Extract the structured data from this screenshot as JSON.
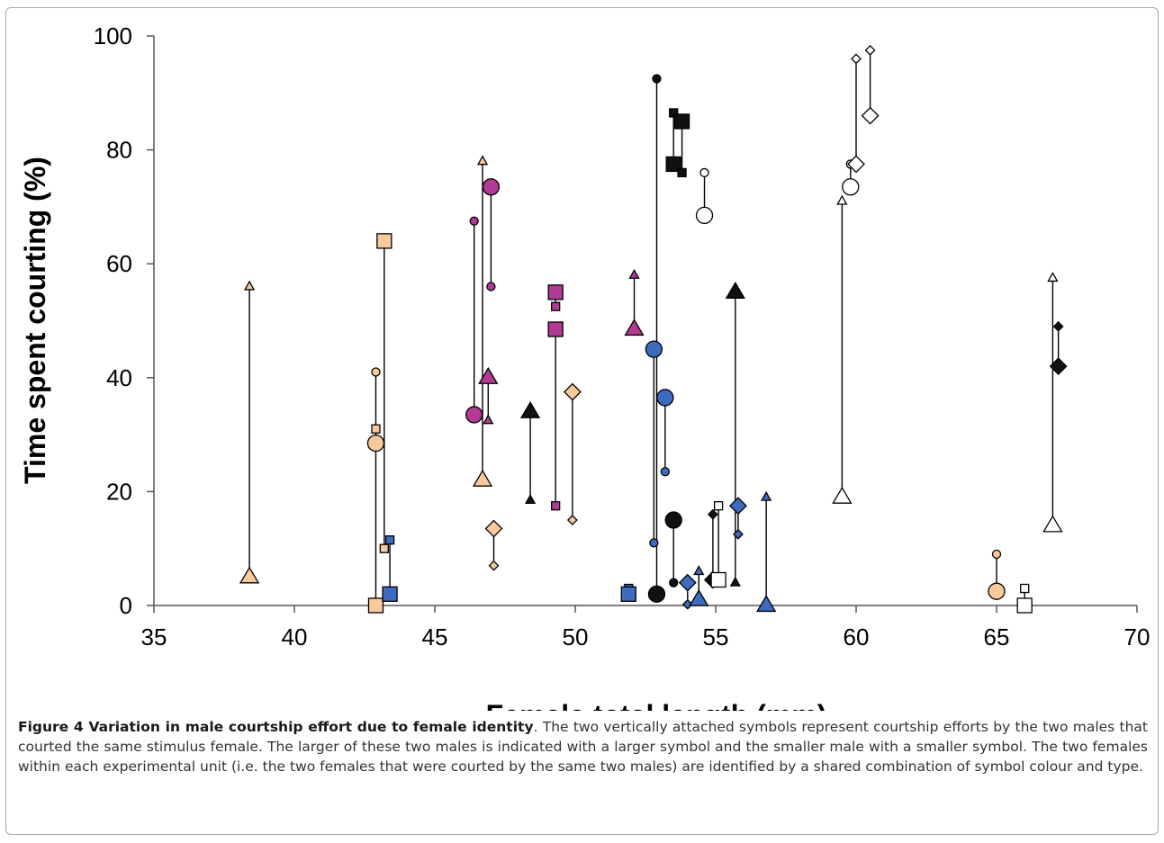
{
  "chart_data": {
    "type": "scatter",
    "xlabel": "Female total length (mm)",
    "ylabel": "Time spent courting (%)",
    "xlim": [
      35,
      70
    ],
    "ylim": [
      0,
      100
    ],
    "x_ticks": [
      "35",
      "40",
      "45",
      "50",
      "55",
      "60",
      "65",
      "70"
    ],
    "y_ticks": [
      "0",
      "20",
      "40",
      "60",
      "80",
      "100"
    ],
    "grid": false,
    "legend": "none",
    "colors": {
      "peach": "#f9c89b",
      "magenta": "#b03a94",
      "blue": "#3d6bbf",
      "black": "#111111",
      "white": "#ffffff"
    },
    "pairs": [
      {
        "x": 38.4,
        "shape": "triangle",
        "color": "peach",
        "large": 5,
        "small": 56
      },
      {
        "x": 42.9,
        "shape": "circle",
        "color": "peach",
        "large": 28.5,
        "small": 41
      },
      {
        "x": 42.9,
        "shape": "square",
        "color": "peach",
        "large": 0,
        "small": 31
      },
      {
        "x": 43.2,
        "shape": "square",
        "color": "peach",
        "large": 64,
        "small": 10
      },
      {
        "x": 43.4,
        "shape": "square",
        "color": "blue",
        "large": 2,
        "small": 11.5
      },
      {
        "x": 46.4,
        "shape": "circle",
        "color": "magenta",
        "large": 33.5,
        "small": 67.5
      },
      {
        "x": 46.7,
        "shape": "triangle",
        "color": "peach",
        "large": 22,
        "small": 78
      },
      {
        "x": 47.0,
        "shape": "circle",
        "color": "magenta",
        "large": 73.5,
        "small": 56
      },
      {
        "x": 46.9,
        "shape": "triangle",
        "color": "magenta",
        "large": 40,
        "small": 32.5
      },
      {
        "x": 47.1,
        "shape": "diamond",
        "color": "peach",
        "large": 13.5,
        "small": 7
      },
      {
        "x": 48.4,
        "shape": "triangle",
        "color": "black",
        "large": 34,
        "small": 18.5
      },
      {
        "x": 49.3,
        "shape": "square",
        "color": "magenta",
        "large": 55,
        "small": 52.5
      },
      {
        "x": 49.3,
        "shape": "square",
        "color": "magenta",
        "large": 48.5,
        "small": 17.5
      },
      {
        "x": 49.9,
        "shape": "diamond",
        "color": "peach",
        "large": 37.5,
        "small": 15
      },
      {
        "x": 52.1,
        "shape": "triangle",
        "color": "magenta",
        "large": 48.5,
        "small": 58
      },
      {
        "x": 51.9,
        "shape": "square",
        "color": "blue",
        "large": 2,
        "small": 3
      },
      {
        "x": 52.8,
        "shape": "circle",
        "color": "blue",
        "large": 45,
        "small": 11
      },
      {
        "x": 52.9,
        "shape": "circle",
        "color": "black",
        "large": 2,
        "small": 92.5
      },
      {
        "x": 53.2,
        "shape": "circle",
        "color": "blue",
        "large": 36.5,
        "small": 23.5
      },
      {
        "x": 53.5,
        "shape": "circle",
        "color": "black",
        "large": 15,
        "small": 4
      },
      {
        "x": 53.5,
        "shape": "square",
        "color": "black",
        "large": 77.5,
        "small": 86.5
      },
      {
        "x": 53.8,
        "shape": "square",
        "color": "black",
        "large": 85,
        "small": 76
      },
      {
        "x": 54.0,
        "shape": "diamond",
        "color": "blue",
        "large": 4,
        "small": 0.2
      },
      {
        "x": 54.4,
        "shape": "triangle",
        "color": "blue",
        "large": 1,
        "small": 6
      },
      {
        "x": 54.6,
        "shape": "circle",
        "color": "white",
        "large": 68.5,
        "small": 76
      },
      {
        "x": 54.9,
        "shape": "diamond",
        "color": "black",
        "large": 4.5,
        "small": 16
      },
      {
        "x": 55.1,
        "shape": "square",
        "color": "white",
        "large": 4.5,
        "small": 17.5
      },
      {
        "x": 55.7,
        "shape": "triangle",
        "color": "black",
        "large": 55,
        "small": 4
      },
      {
        "x": 55.8,
        "shape": "diamond",
        "color": "blue",
        "large": 17.5,
        "small": 12.5
      },
      {
        "x": 56.8,
        "shape": "triangle",
        "color": "blue",
        "large": 0,
        "small": 19
      },
      {
        "x": 59.5,
        "shape": "triangle",
        "color": "white",
        "large": 19,
        "small": 71
      },
      {
        "x": 59.8,
        "shape": "circle",
        "color": "white",
        "large": 73.5,
        "small": 77.5
      },
      {
        "x": 60.0,
        "shape": "diamond",
        "color": "white",
        "large": 77.5,
        "small": 96
      },
      {
        "x": 60.5,
        "shape": "diamond",
        "color": "white",
        "large": 86,
        "small": 97.5
      },
      {
        "x": 65.0,
        "shape": "circle",
        "color": "peach",
        "large": 2.5,
        "small": 9
      },
      {
        "x": 66.0,
        "shape": "square",
        "color": "white",
        "large": 0,
        "small": 3
      },
      {
        "x": 67.0,
        "shape": "triangle",
        "color": "white",
        "large": 14,
        "small": 57.5
      },
      {
        "x": 67.2,
        "shape": "diamond",
        "color": "black",
        "large": 42,
        "small": 49
      }
    ]
  },
  "caption": {
    "title": "Figure 4 Variation in male courtship effort due to female identity",
    "text": ". The two vertically attached symbols represent courtship efforts by the two males that courted the same stimulus female. The larger of these two males is indicated with a larger symbol and the smaller male with a smaller symbol. The two females within each experimental unit (i.e. the two females that were courted by the same two males) are identified by a shared combination of symbol colour and type."
  }
}
